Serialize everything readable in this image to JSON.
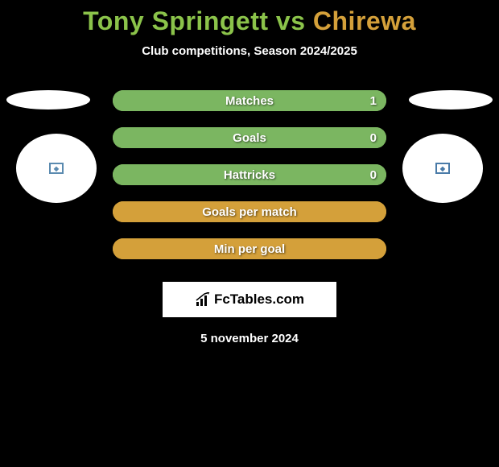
{
  "title": {
    "player1": "Tony Springett",
    "vs": " vs ",
    "player2": "Chirewa",
    "player1_color": "#8bc34a",
    "player2_color": "#d4a03a"
  },
  "subtitle": "Club competitions, Season 2024/2025",
  "colors": {
    "background": "#000000",
    "bar_green": "#7bb661",
    "bar_yellow": "#d4a03a",
    "text": "#ffffff",
    "circle_left_accent": "#5b8bb0",
    "circle_right_accent": "#4a7ba8"
  },
  "stats": [
    {
      "label": "Matches",
      "value": "1",
      "fill_color": "#7bb661",
      "fill_pct": 100,
      "show_value": true
    },
    {
      "label": "Goals",
      "value": "0",
      "fill_color": "#7bb661",
      "fill_pct": 100,
      "show_value": true
    },
    {
      "label": "Hattricks",
      "value": "0",
      "fill_color": "#7bb661",
      "fill_pct": 100,
      "show_value": true
    },
    {
      "label": "Goals per match",
      "value": "",
      "fill_color": "#d4a03a",
      "fill_pct": 100,
      "show_value": false
    },
    {
      "label": "Min per goal",
      "value": "",
      "fill_color": "#d4a03a",
      "fill_pct": 100,
      "show_value": false
    }
  ],
  "logo": {
    "brand": "FcTables.com"
  },
  "date": "5 november 2024"
}
